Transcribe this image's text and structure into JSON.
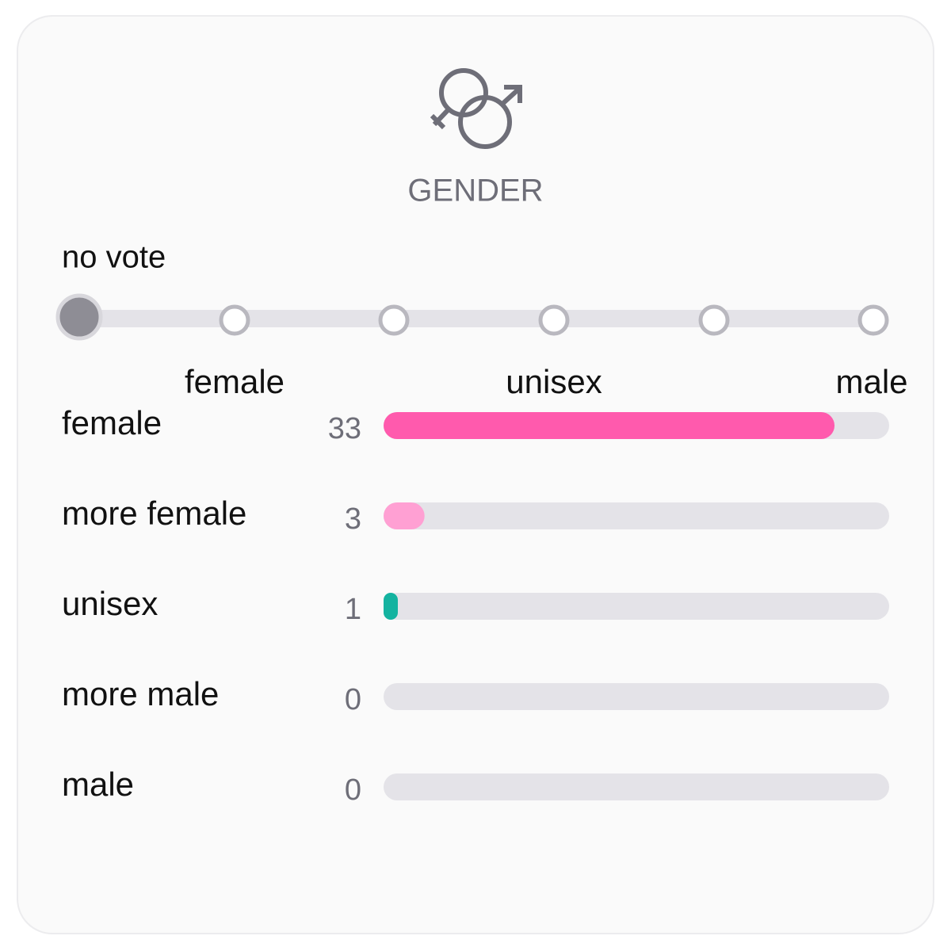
{
  "header": {
    "title": "GENDER"
  },
  "slider": {
    "selected_label": "no vote",
    "labels": [
      "female",
      "unisex",
      "male"
    ]
  },
  "results": {
    "rows": [
      {
        "label": "female",
        "count": 33,
        "color": "#ff5aad"
      },
      {
        "label": "more female",
        "count": 3,
        "color": "#ffa0d3"
      },
      {
        "label": "unisex",
        "count": 1,
        "color": "#14b3a0"
      },
      {
        "label": "more male",
        "count": 0
      },
      {
        "label": "male",
        "count": 0
      }
    ]
  }
}
